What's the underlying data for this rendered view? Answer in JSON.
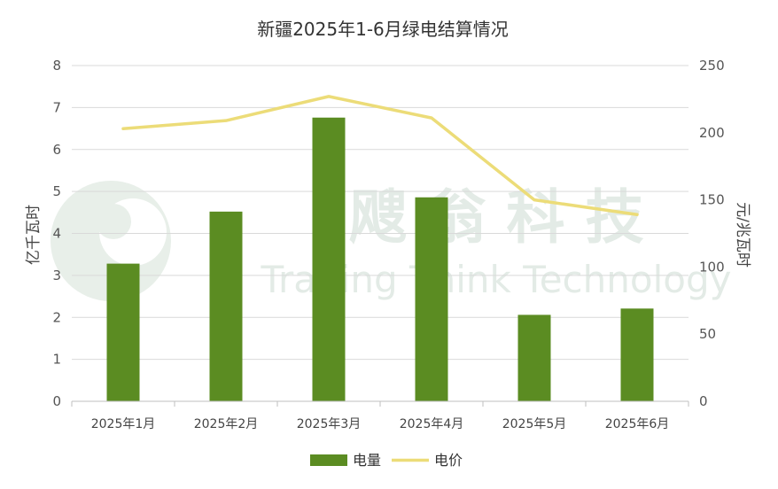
{
  "chart_data": {
    "type": "bar",
    "title": "新疆2025年1-6月绿电结算情况",
    "categories": [
      "2025年1月",
      "2025年2月",
      "2025年3月",
      "2025年4月",
      "2025年5月",
      "2025年6月"
    ],
    "series": [
      {
        "name": "电量",
        "type": "bar",
        "axis": "left",
        "color": "#5b8c22",
        "values": [
          3.28,
          4.52,
          6.76,
          4.86,
          2.06,
          2.21
        ]
      },
      {
        "name": "电价",
        "type": "line",
        "axis": "right",
        "color": "#ecdc78",
        "values": [
          203,
          209,
          227,
          211,
          150,
          139
        ]
      }
    ],
    "ylabel": "亿千瓦时",
    "y2label": "元/兆瓦时",
    "ylim": [
      0,
      8
    ],
    "y2lim": [
      0,
      250
    ],
    "yticks": [
      "0",
      "1",
      "2",
      "3",
      "4",
      "5",
      "6",
      "7",
      "8"
    ],
    "y2ticks": [
      "0",
      "50",
      "100",
      "150",
      "200",
      "250"
    ],
    "grid": true,
    "legend_position": "bottom"
  },
  "watermark": {
    "chinese": "飕 翁 科 技",
    "english": "Trading Think Technology"
  }
}
